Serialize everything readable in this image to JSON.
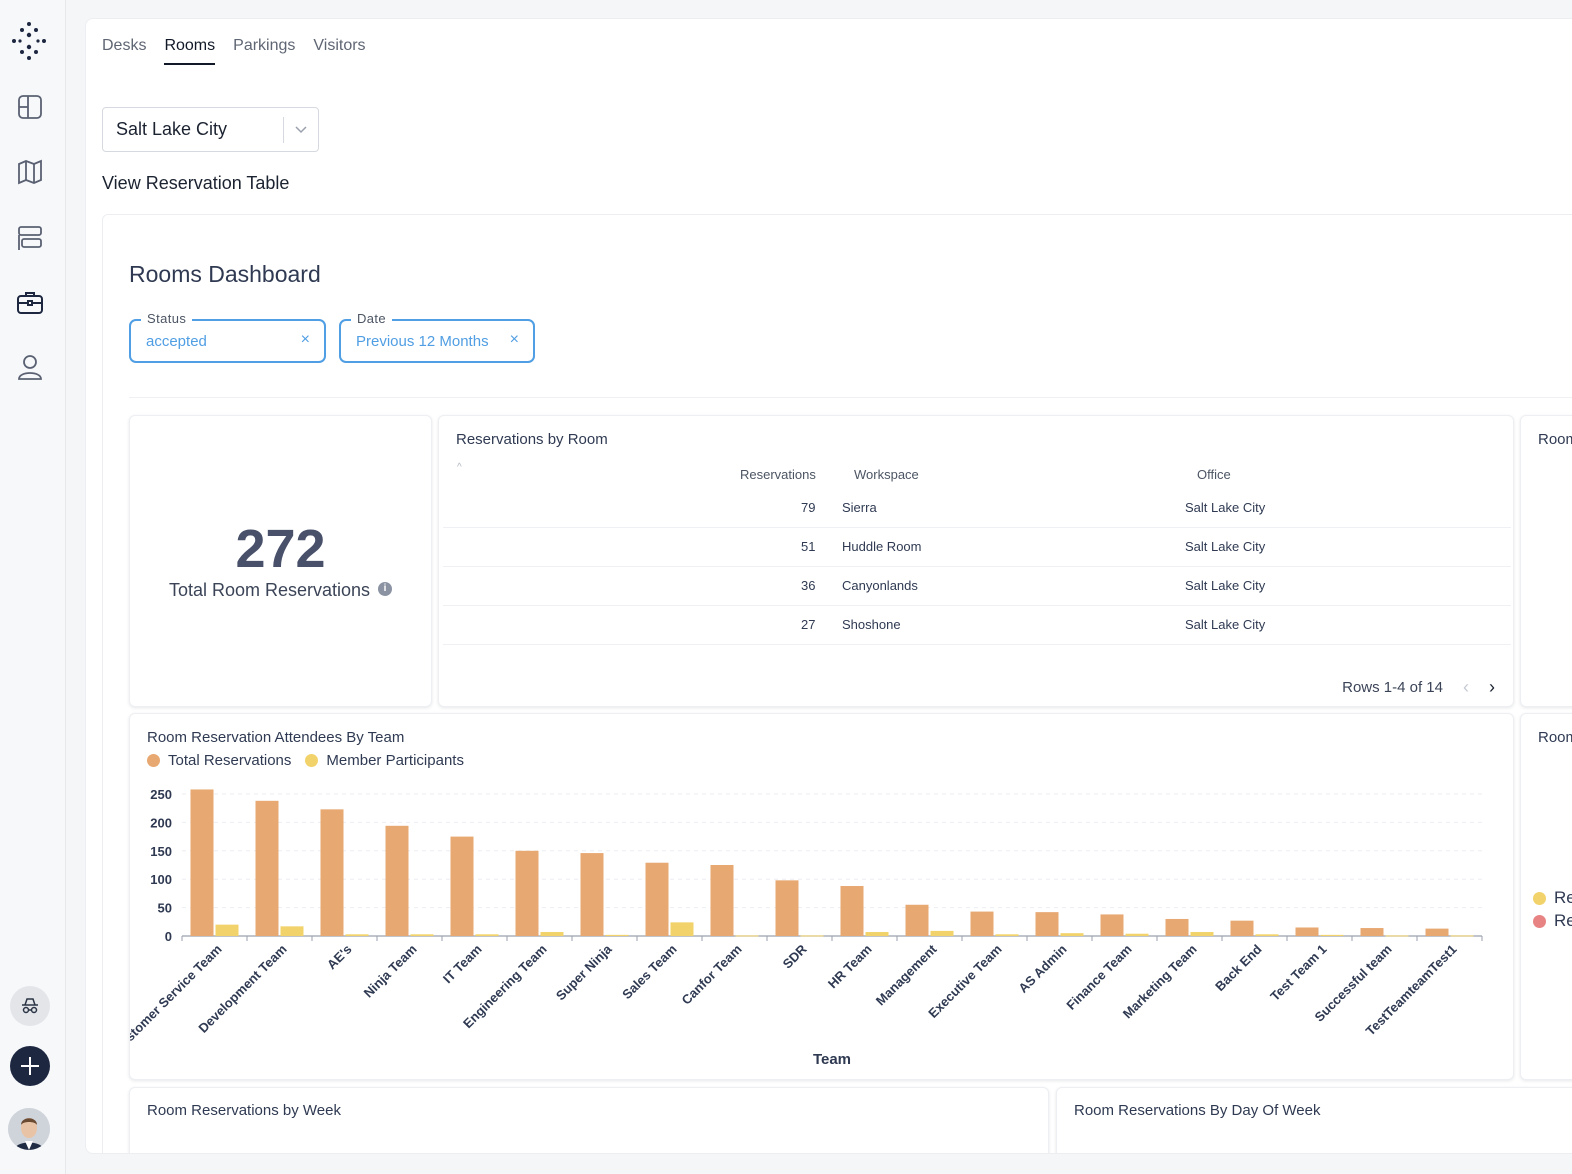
{
  "nav": {
    "tabs": [
      {
        "label": "Desks"
      },
      {
        "label": "Rooms",
        "active": true
      },
      {
        "label": "Parkings"
      },
      {
        "label": "Visitors"
      }
    ],
    "icons": [
      "floor-plan-icon",
      "map-icon",
      "layout-icon",
      "briefcase-icon",
      "user-icon",
      "incognito-icon",
      "add-icon"
    ]
  },
  "location_select": {
    "value": "Salt Lake City"
  },
  "view_table_link": "View Reservation Table",
  "dashboard": {
    "title": "Rooms Dashboard",
    "filters": [
      {
        "label": "Status",
        "value": "accepted"
      },
      {
        "label": "Date",
        "value": "Previous 12 Months"
      }
    ],
    "kpi": {
      "value": "272",
      "label": "Total Room Reservations"
    },
    "reservations_table": {
      "title": "Reservations by Room",
      "columns": [
        "Reservations",
        "Workspace",
        "Office"
      ],
      "rows": [
        {
          "reservations": "79",
          "workspace": "Sierra",
          "office": "Salt Lake City"
        },
        {
          "reservations": "51",
          "workspace": "Huddle Room",
          "office": "Salt Lake City"
        },
        {
          "reservations": "36",
          "workspace": "Canyonlands",
          "office": "Salt Lake City"
        },
        {
          "reservations": "27",
          "workspace": "Shoshone",
          "office": "Salt Lake City"
        }
      ],
      "pager": "Rows 1-4 of 14"
    },
    "peek_right_top": "Room",
    "peek_right_mid": "Room",
    "peek_right_legend": [
      "Re",
      "Re"
    ],
    "bottom_left_title": "Room Reservations by Week",
    "bottom_right_title": "Room Reservations By Day Of Week"
  },
  "chart_data": {
    "type": "bar",
    "title": "Room Reservation Attendees By Team",
    "xlabel": "Team",
    "ylabel": "",
    "ylim": [
      0,
      250
    ],
    "yticks": [
      0,
      50,
      100,
      150,
      200,
      250
    ],
    "legend_position": "top-left",
    "categories": [
      "Customer Service Team",
      "Development Team",
      "AE's",
      "Ninja Team",
      "IT Team",
      "Engineering Team",
      "Super Ninja",
      "Sales Team",
      "Canfor Team",
      "SDR",
      "HR Team",
      "Management",
      "Executive Team",
      "AS Admin",
      "Finance Team",
      "Marketing Team",
      "Back End",
      "Test Team 1",
      "Successful team",
      "TestTeamteamTest1"
    ],
    "series": [
      {
        "name": "Total Reservations",
        "color": "#e8a872",
        "values": [
          258,
          238,
          223,
          194,
          175,
          150,
          146,
          129,
          125,
          98,
          88,
          55,
          43,
          42,
          38,
          30,
          27,
          15,
          14,
          13
        ]
      },
      {
        "name": "Member Participants",
        "color": "#f2d36b",
        "values": [
          20,
          17,
          3,
          3,
          3,
          7,
          2,
          24,
          1,
          1,
          7,
          9,
          3,
          5,
          4,
          7,
          3,
          2,
          1,
          1
        ]
      }
    ]
  }
}
